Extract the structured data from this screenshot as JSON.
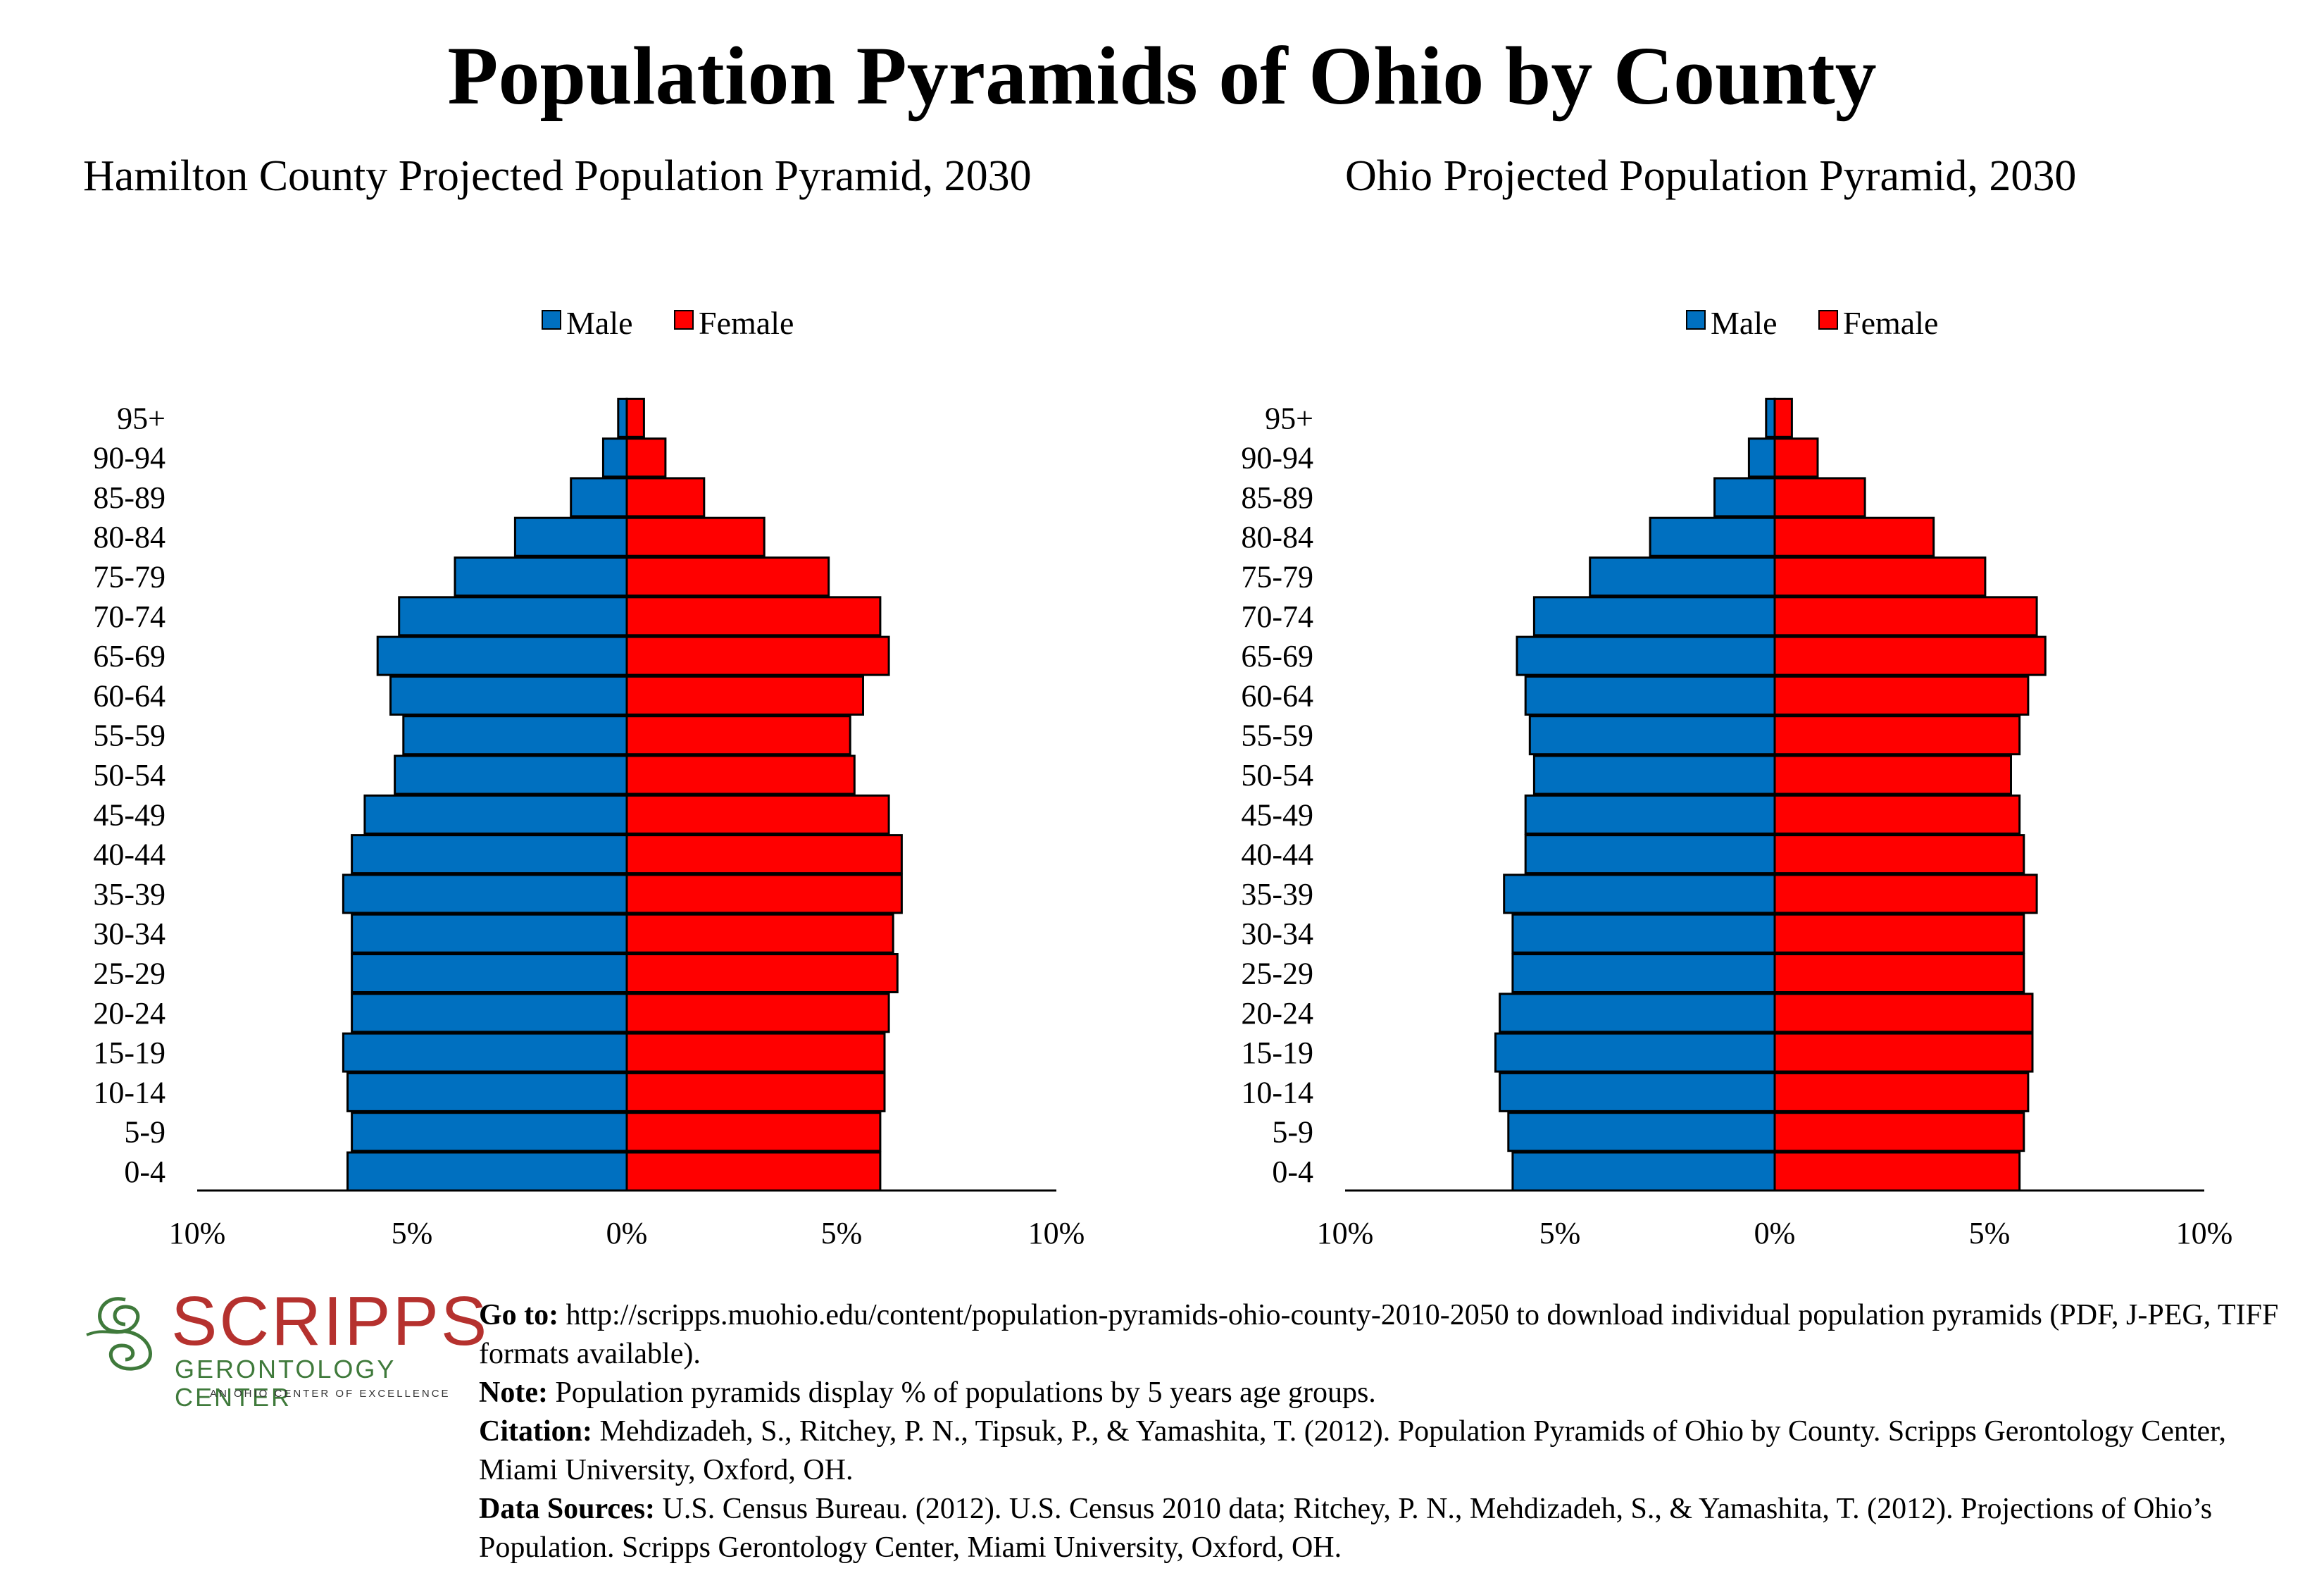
{
  "title": "Population Pyramids of Ohio by County",
  "legend": {
    "male": "Male",
    "female": "Female"
  },
  "colors": {
    "male": "#0070c0",
    "female": "#ff0000",
    "axis": "#000000"
  },
  "x_ticks": [
    "10%",
    "5%",
    "0%",
    "5%",
    "10%"
  ],
  "age_groups": [
    "0-4",
    "5-9",
    "10-14",
    "15-19",
    "20-24",
    "25-29",
    "30-34",
    "35-39",
    "40-44",
    "45-49",
    "50-54",
    "55-59",
    "60-64",
    "65-69",
    "70-74",
    "75-79",
    "80-84",
    "85-89",
    "90-94",
    "95+"
  ],
  "chart_data": [
    {
      "type": "bar",
      "orientation": "horizontal-pyramid",
      "title": "Hamilton County Projected Population Pyramid, 2030",
      "categories": [
        "0-4",
        "5-9",
        "10-14",
        "15-19",
        "20-24",
        "25-29",
        "30-34",
        "35-39",
        "40-44",
        "45-49",
        "50-54",
        "55-59",
        "60-64",
        "65-69",
        "70-74",
        "75-79",
        "80-84",
        "85-89",
        "90-94",
        "95+"
      ],
      "series": [
        {
          "name": "Male",
          "values": [
            6.5,
            6.4,
            6.5,
            6.6,
            6.4,
            6.4,
            6.4,
            6.6,
            6.4,
            6.1,
            5.4,
            5.2,
            5.5,
            5.8,
            5.3,
            4.0,
            2.6,
            1.3,
            0.55,
            0.2
          ]
        },
        {
          "name": "Female",
          "values": [
            5.9,
            5.9,
            6.0,
            6.0,
            6.1,
            6.3,
            6.2,
            6.4,
            6.4,
            6.1,
            5.3,
            5.2,
            5.5,
            6.1,
            5.9,
            4.7,
            3.2,
            1.8,
            0.9,
            0.4
          ]
        }
      ],
      "xlim": [
        -10,
        10
      ],
      "xlabel": "",
      "ylabel": "",
      "legend_position": "top-center",
      "grid": false
    },
    {
      "type": "bar",
      "orientation": "horizontal-pyramid",
      "title": "Ohio Projected Population Pyramid, 2030",
      "categories": [
        "0-4",
        "5-9",
        "10-14",
        "15-19",
        "20-24",
        "25-29",
        "30-34",
        "35-39",
        "40-44",
        "45-49",
        "50-54",
        "55-59",
        "60-64",
        "65-69",
        "70-74",
        "75-79",
        "80-84",
        "85-89",
        "90-94",
        "95+"
      ],
      "series": [
        {
          "name": "Male",
          "values": [
            6.1,
            6.2,
            6.4,
            6.5,
            6.4,
            6.1,
            6.1,
            6.3,
            5.8,
            5.8,
            5.6,
            5.7,
            5.8,
            6.0,
            5.6,
            4.3,
            2.9,
            1.4,
            0.6,
            0.2
          ]
        },
        {
          "name": "Female",
          "values": [
            5.7,
            5.8,
            5.9,
            6.0,
            6.0,
            5.8,
            5.8,
            6.1,
            5.8,
            5.7,
            5.5,
            5.7,
            5.9,
            6.3,
            6.1,
            4.9,
            3.7,
            2.1,
            1.0,
            0.4
          ]
        }
      ],
      "xlim": [
        -10,
        10
      ],
      "xlabel": "",
      "ylabel": "",
      "legend_position": "top-center",
      "grid": false
    }
  ],
  "logo": {
    "word": "SCRIPPS",
    "sub": "GERONTOLOGY CENTER",
    "tag": "AN OHIO CENTER OF EXCELLENCE"
  },
  "notes": {
    "goto_label": "Go to:",
    "goto_text": "http://scripps.muohio.edu/content/population-pyramids-ohio-county-2010-2050 to download individual population pyramids (PDF, J-PEG, TIFF formats available).",
    "note_label": "Note:",
    "note_text": "Population pyramids display % of populations by 5 years age groups.",
    "citation_label": "Citation:",
    "citation_text": "Mehdizadeh, S., Ritchey, P. N., Tipsuk, P., & Yamashita, T. (2012). Population Pyramids of Ohio by County. Scripps Gerontology Center, Miami University, Oxford, OH.",
    "sources_label": "Data Sources:",
    "sources_text": "U.S. Census Bureau. (2012). U.S. Census 2010 data; Ritchey, P. N., Mehdizadeh, S., & Yamashita, T. (2012). Projections of Ohio’s Population. Scripps Gerontology Center, Miami University, Oxford, OH."
  }
}
